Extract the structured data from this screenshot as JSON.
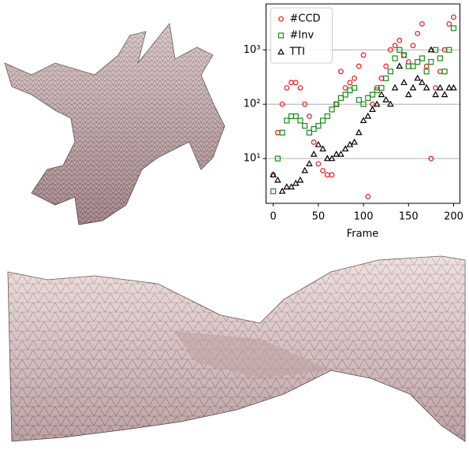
{
  "chart_data": {
    "type": "scatter",
    "xlabel": "Frame",
    "x": [
      0,
      5,
      10,
      15,
      20,
      25,
      30,
      35,
      40,
      45,
      50,
      55,
      60,
      65,
      70,
      75,
      80,
      85,
      90,
      95,
      100,
      105,
      110,
      115,
      120,
      125,
      130,
      135,
      140,
      145,
      150,
      155,
      160,
      165,
      170,
      175,
      180,
      185,
      190,
      195,
      200
    ],
    "series": [
      {
        "name": "#CCD",
        "color": "#e8191c",
        "marker": "circle",
        "values": [
          5,
          30,
          100,
          200,
          250,
          250,
          200,
          100,
          60,
          20,
          8,
          6,
          5,
          5,
          100,
          400,
          200,
          250,
          300,
          500,
          800,
          2,
          100,
          200,
          300,
          500,
          1000,
          1200,
          1500,
          800,
          600,
          1200,
          2000,
          3000,
          500,
          10,
          200,
          400,
          1000,
          3000,
          4000
        ]
      },
      {
        "name": "#Inv",
        "color": "#1a8a1a",
        "marker": "square",
        "values": [
          2.5,
          10,
          30,
          50,
          60,
          60,
          50,
          40,
          30,
          35,
          40,
          50,
          60,
          80,
          100,
          130,
          150,
          180,
          200,
          120,
          100,
          130,
          150,
          180,
          200,
          300,
          400,
          700,
          1000,
          800,
          500,
          500,
          600,
          700,
          400,
          600,
          1000,
          700,
          400,
          1000,
          2500
        ]
      },
      {
        "name": "TTI",
        "color": "#000000",
        "marker": "triangle",
        "values": [
          5,
          4,
          2.5,
          3,
          3,
          3.5,
          4,
          6,
          8,
          12,
          18,
          15,
          10,
          10,
          12,
          12,
          15,
          18,
          20,
          30,
          50,
          60,
          80,
          100,
          150,
          120,
          100,
          200,
          500,
          250,
          150,
          200,
          300,
          250,
          200,
          1000,
          150,
          200,
          150,
          200,
          200
        ]
      }
    ],
    "xlim": [
      -8,
      207
    ],
    "xticks": [
      0,
      50,
      100,
      150,
      200
    ],
    "ylim": [
      1.5,
      7000
    ],
    "yscale": "log",
    "yticks": [
      {
        "value": 10,
        "label": "10¹"
      },
      {
        "value": 100,
        "label": "10²"
      },
      {
        "value": 1000,
        "label": "10³"
      }
    ],
    "grid": "y",
    "legend": "upper-left"
  }
}
